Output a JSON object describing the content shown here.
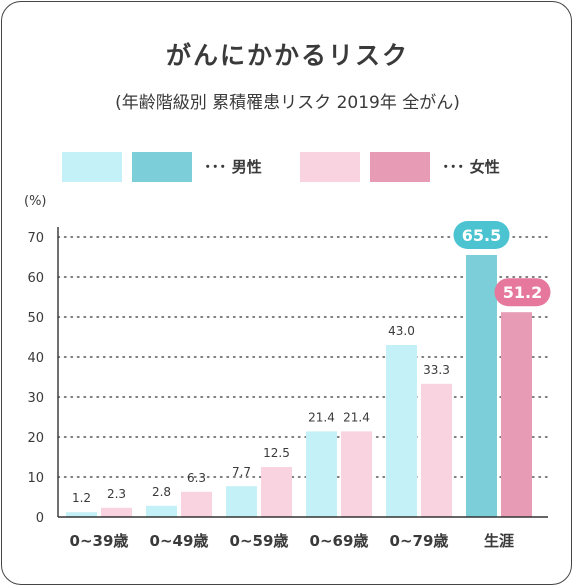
{
  "title": "がんにかかるリスク",
  "subtitle": "(年齢階級別 累積罹患リスク 2019年 全がん)",
  "legend": {
    "male_label": "･･･ 男性",
    "female_label": "･･･ 女性"
  },
  "colors": {
    "male_light": "#c4f0f7",
    "male_dark": "#7ccfd8",
    "female_light": "#f9d3df",
    "female_dark": "#e89bb4",
    "male_bubble": "#4cc3d1",
    "female_bubble": "#e5789c",
    "grid": "#555555",
    "axis": "#333333"
  },
  "chart_data": {
    "type": "bar",
    "ylabel": "(%)",
    "ylim": [
      0,
      70
    ],
    "yticks": [
      0,
      10,
      20,
      30,
      40,
      50,
      60,
      70
    ],
    "grid": "dotted-horizontal",
    "categories": [
      "0~39歳",
      "0~49歳",
      "0~59歳",
      "0~69歳",
      "0~79歳",
      "生涯"
    ],
    "series": [
      {
        "name": "男性",
        "values": [
          1.2,
          2.8,
          7.7,
          21.4,
          43.0,
          65.5
        ]
      },
      {
        "name": "女性",
        "values": [
          2.3,
          6.3,
          12.5,
          21.4,
          33.3,
          51.2
        ]
      }
    ],
    "value_labels": {
      "male": [
        "1.2",
        "2.8",
        "7.7",
        "21.4",
        "43.0",
        "65.5"
      ],
      "female": [
        "2.3",
        "6.3",
        "12.5",
        "21.4",
        "33.3",
        "51.2"
      ]
    }
  }
}
